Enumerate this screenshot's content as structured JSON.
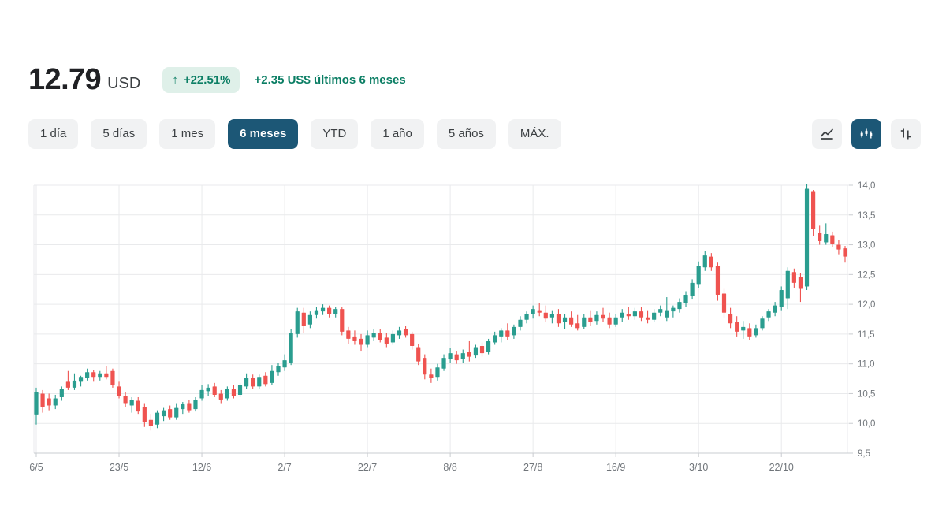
{
  "header": {
    "price": "12.79",
    "currency": "USD",
    "change_arrow": "↑",
    "change_badge": "+22.51%",
    "change_text": "+2.35 US$ últimos 6 meses"
  },
  "toolbar": {
    "ranges": [
      {
        "label": "1 día",
        "selected": false
      },
      {
        "label": "5 días",
        "selected": false
      },
      {
        "label": "1 mes",
        "selected": false
      },
      {
        "label": "6 meses",
        "selected": true
      },
      {
        "label": "YTD",
        "selected": false
      },
      {
        "label": "1 año",
        "selected": false
      },
      {
        "label": "5 años",
        "selected": false
      },
      {
        "label": "MÁX.",
        "selected": false
      }
    ],
    "chart_types": [
      {
        "name": "line-chart",
        "selected": false
      },
      {
        "name": "candlestick-chart",
        "selected": true
      },
      {
        "name": "ohlc-bar-chart",
        "selected": false
      }
    ]
  },
  "colors": {
    "up": "#2a9d8f",
    "down": "#ef5350",
    "accent": "#1c5776",
    "badge_bg": "#dff0e9",
    "positive_text": "#0b7e64",
    "grid": "#e9eaec",
    "axis_line": "#c9ccd0",
    "axis_text": "#70757a"
  },
  "chart_data": {
    "type": "candlestick",
    "title": "",
    "xlabel": "",
    "ylabel": "",
    "ylim": [
      9.5,
      14.0
    ],
    "grid": true,
    "y_ticks": [
      {
        "value": 14.0,
        "label": "14,0"
      },
      {
        "value": 13.5,
        "label": "13,5"
      },
      {
        "value": 13.0,
        "label": "13,0"
      },
      {
        "value": 12.5,
        "label": "12,5"
      },
      {
        "value": 12.0,
        "label": "12,0"
      },
      {
        "value": 11.5,
        "label": "11,5"
      },
      {
        "value": 11.0,
        "label": "11,0"
      },
      {
        "value": 10.5,
        "label": "10,5"
      },
      {
        "value": 10.0,
        "label": "10,0"
      },
      {
        "value": 9.5,
        "label": "9,5"
      }
    ],
    "x_ticks": [
      {
        "index": 0,
        "label": "6/5"
      },
      {
        "index": 13,
        "label": "23/5"
      },
      {
        "index": 26,
        "label": "12/6"
      },
      {
        "index": 39,
        "label": "2/7"
      },
      {
        "index": 52,
        "label": "22/7"
      },
      {
        "index": 65,
        "label": "8/8"
      },
      {
        "index": 78,
        "label": "27/8"
      },
      {
        "index": 91,
        "label": "16/9"
      },
      {
        "index": 104,
        "label": "3/10"
      },
      {
        "index": 117,
        "label": "22/10"
      }
    ],
    "candles": [
      [
        10.15,
        10.6,
        9.98,
        10.52
      ],
      [
        10.5,
        10.56,
        10.18,
        10.28
      ],
      [
        10.42,
        10.5,
        10.22,
        10.3
      ],
      [
        10.3,
        10.48,
        10.24,
        10.42
      ],
      [
        10.44,
        10.62,
        10.38,
        10.58
      ],
      [
        10.7,
        10.88,
        10.56,
        10.6
      ],
      [
        10.6,
        10.84,
        10.56,
        10.72
      ],
      [
        10.7,
        10.8,
        10.62,
        10.78
      ],
      [
        10.76,
        10.92,
        10.72,
        10.86
      ],
      [
        10.86,
        10.9,
        10.7,
        10.78
      ],
      [
        10.78,
        10.88,
        10.72,
        10.84
      ],
      [
        10.84,
        10.96,
        10.74,
        10.78
      ],
      [
        10.88,
        10.92,
        10.6,
        10.64
      ],
      [
        10.62,
        10.7,
        10.42,
        10.46
      ],
      [
        10.46,
        10.52,
        10.28,
        10.34
      ],
      [
        10.3,
        10.44,
        10.18,
        10.4
      ],
      [
        10.38,
        10.44,
        10.16,
        10.2
      ],
      [
        10.28,
        10.34,
        9.94,
        10.02
      ],
      [
        10.06,
        10.16,
        9.88,
        9.96
      ],
      [
        9.98,
        10.22,
        9.92,
        10.18
      ],
      [
        10.12,
        10.26,
        10.04,
        10.22
      ],
      [
        10.24,
        10.3,
        10.06,
        10.1
      ],
      [
        10.1,
        10.34,
        10.06,
        10.26
      ],
      [
        10.24,
        10.36,
        10.16,
        10.32
      ],
      [
        10.34,
        10.4,
        10.18,
        10.22
      ],
      [
        10.24,
        10.44,
        10.2,
        10.4
      ],
      [
        10.42,
        10.64,
        10.38,
        10.56
      ],
      [
        10.54,
        10.66,
        10.46,
        10.6
      ],
      [
        10.62,
        10.68,
        10.44,
        10.48
      ],
      [
        10.5,
        10.56,
        10.34,
        10.4
      ],
      [
        10.42,
        10.62,
        10.38,
        10.58
      ],
      [
        10.58,
        10.64,
        10.42,
        10.46
      ],
      [
        10.48,
        10.68,
        10.44,
        10.64
      ],
      [
        10.62,
        10.84,
        10.58,
        10.76
      ],
      [
        10.76,
        10.82,
        10.58,
        10.62
      ],
      [
        10.62,
        10.82,
        10.58,
        10.78
      ],
      [
        10.8,
        10.86,
        10.62,
        10.66
      ],
      [
        10.68,
        10.98,
        10.64,
        10.88
      ],
      [
        10.86,
        11.02,
        10.8,
        10.96
      ],
      [
        10.94,
        11.16,
        10.88,
        11.06
      ],
      [
        11.02,
        11.58,
        10.98,
        11.52
      ],
      [
        11.5,
        11.94,
        11.44,
        11.88
      ],
      [
        11.86,
        11.94,
        11.52,
        11.64
      ],
      [
        11.66,
        11.88,
        11.6,
        11.82
      ],
      [
        11.82,
        11.96,
        11.76,
        11.9
      ],
      [
        11.88,
        12.0,
        11.82,
        11.94
      ],
      [
        11.94,
        11.98,
        11.78,
        11.84
      ],
      [
        11.84,
        11.96,
        11.78,
        11.92
      ],
      [
        11.92,
        11.96,
        11.48,
        11.54
      ],
      [
        11.56,
        11.62,
        11.34,
        11.42
      ],
      [
        11.46,
        11.56,
        11.32,
        11.38
      ],
      [
        11.42,
        11.5,
        11.22,
        11.32
      ],
      [
        11.32,
        11.56,
        11.28,
        11.48
      ],
      [
        11.44,
        11.58,
        11.38,
        11.52
      ],
      [
        11.52,
        11.58,
        11.36,
        11.4
      ],
      [
        11.44,
        11.52,
        11.28,
        11.34
      ],
      [
        11.36,
        11.56,
        11.32,
        11.5
      ],
      [
        11.48,
        11.62,
        11.42,
        11.56
      ],
      [
        11.58,
        11.64,
        11.44,
        11.48
      ],
      [
        11.5,
        11.54,
        11.24,
        11.3
      ],
      [
        11.28,
        11.34,
        10.98,
        11.04
      ],
      [
        11.1,
        11.16,
        10.74,
        10.82
      ],
      [
        10.82,
        10.92,
        10.68,
        10.76
      ],
      [
        10.78,
        11.0,
        10.72,
        10.94
      ],
      [
        10.92,
        11.16,
        10.88,
        11.1
      ],
      [
        11.08,
        11.26,
        11.02,
        11.18
      ],
      [
        11.16,
        11.22,
        11.0,
        11.06
      ],
      [
        11.08,
        11.24,
        11.02,
        11.18
      ],
      [
        11.2,
        11.38,
        11.04,
        11.12
      ],
      [
        11.14,
        11.32,
        11.1,
        11.28
      ],
      [
        11.3,
        11.36,
        11.12,
        11.18
      ],
      [
        11.2,
        11.42,
        11.16,
        11.38
      ],
      [
        11.36,
        11.54,
        11.32,
        11.48
      ],
      [
        11.46,
        11.6,
        11.36,
        11.56
      ],
      [
        11.56,
        11.68,
        11.4,
        11.46
      ],
      [
        11.48,
        11.66,
        11.42,
        11.62
      ],
      [
        11.62,
        11.8,
        11.56,
        11.74
      ],
      [
        11.74,
        11.88,
        11.68,
        11.84
      ],
      [
        11.84,
        11.98,
        11.76,
        11.92
      ],
      [
        11.9,
        12.02,
        11.8,
        11.86
      ],
      [
        11.86,
        11.98,
        11.7,
        11.76
      ],
      [
        11.78,
        11.9,
        11.68,
        11.84
      ],
      [
        11.84,
        11.92,
        11.62,
        11.68
      ],
      [
        11.7,
        11.84,
        11.58,
        11.78
      ],
      [
        11.78,
        11.88,
        11.62,
        11.66
      ],
      [
        11.68,
        11.82,
        11.56,
        11.6
      ],
      [
        11.62,
        11.84,
        11.58,
        11.78
      ],
      [
        11.78,
        11.9,
        11.64,
        11.7
      ],
      [
        11.72,
        11.88,
        11.66,
        11.82
      ],
      [
        11.82,
        11.94,
        11.7,
        11.76
      ],
      [
        11.78,
        11.86,
        11.6,
        11.66
      ],
      [
        11.66,
        11.84,
        11.62,
        11.78
      ],
      [
        11.78,
        11.92,
        11.7,
        11.86
      ],
      [
        11.84,
        11.96,
        11.74,
        11.8
      ],
      [
        11.8,
        11.94,
        11.74,
        11.88
      ],
      [
        11.88,
        11.96,
        11.72,
        11.78
      ],
      [
        11.78,
        11.9,
        11.68,
        11.74
      ],
      [
        11.74,
        11.92,
        11.7,
        11.86
      ],
      [
        11.86,
        11.98,
        11.8,
        11.92
      ],
      [
        11.78,
        12.12,
        11.72,
        11.9
      ],
      [
        11.88,
        11.98,
        11.78,
        11.94
      ],
      [
        11.92,
        12.1,
        11.86,
        12.04
      ],
      [
        12.02,
        12.22,
        11.96,
        12.16
      ],
      [
        12.14,
        12.42,
        12.08,
        12.36
      ],
      [
        12.34,
        12.72,
        12.28,
        12.64
      ],
      [
        12.62,
        12.9,
        12.56,
        12.82
      ],
      [
        12.8,
        12.86,
        12.56,
        12.62
      ],
      [
        12.64,
        12.7,
        12.06,
        12.16
      ],
      [
        12.18,
        12.26,
        11.78,
        11.86
      ],
      [
        11.84,
        11.94,
        11.6,
        11.68
      ],
      [
        11.7,
        11.8,
        11.46,
        11.54
      ],
      [
        11.56,
        11.72,
        11.42,
        11.62
      ],
      [
        11.6,
        11.68,
        11.4,
        11.46
      ],
      [
        11.48,
        11.66,
        11.44,
        11.6
      ],
      [
        11.6,
        11.8,
        11.56,
        11.76
      ],
      [
        11.78,
        11.92,
        11.72,
        11.88
      ],
      [
        11.86,
        12.04,
        11.8,
        11.98
      ],
      [
        11.96,
        12.3,
        11.9,
        12.24
      ],
      [
        12.1,
        12.62,
        11.92,
        12.56
      ],
      [
        12.54,
        12.6,
        12.28,
        12.36
      ],
      [
        12.46,
        12.52,
        12.04,
        12.26
      ],
      [
        12.3,
        14.02,
        12.24,
        13.94
      ],
      [
        13.9,
        13.92,
        13.14,
        13.26
      ],
      [
        13.2,
        13.32,
        13.0,
        13.06
      ],
      [
        13.04,
        13.36,
        13.0,
        13.18
      ],
      [
        13.16,
        13.22,
        12.96,
        13.02
      ],
      [
        13.0,
        13.08,
        12.84,
        12.92
      ],
      [
        12.94,
        12.98,
        12.7,
        12.8
      ]
    ]
  }
}
